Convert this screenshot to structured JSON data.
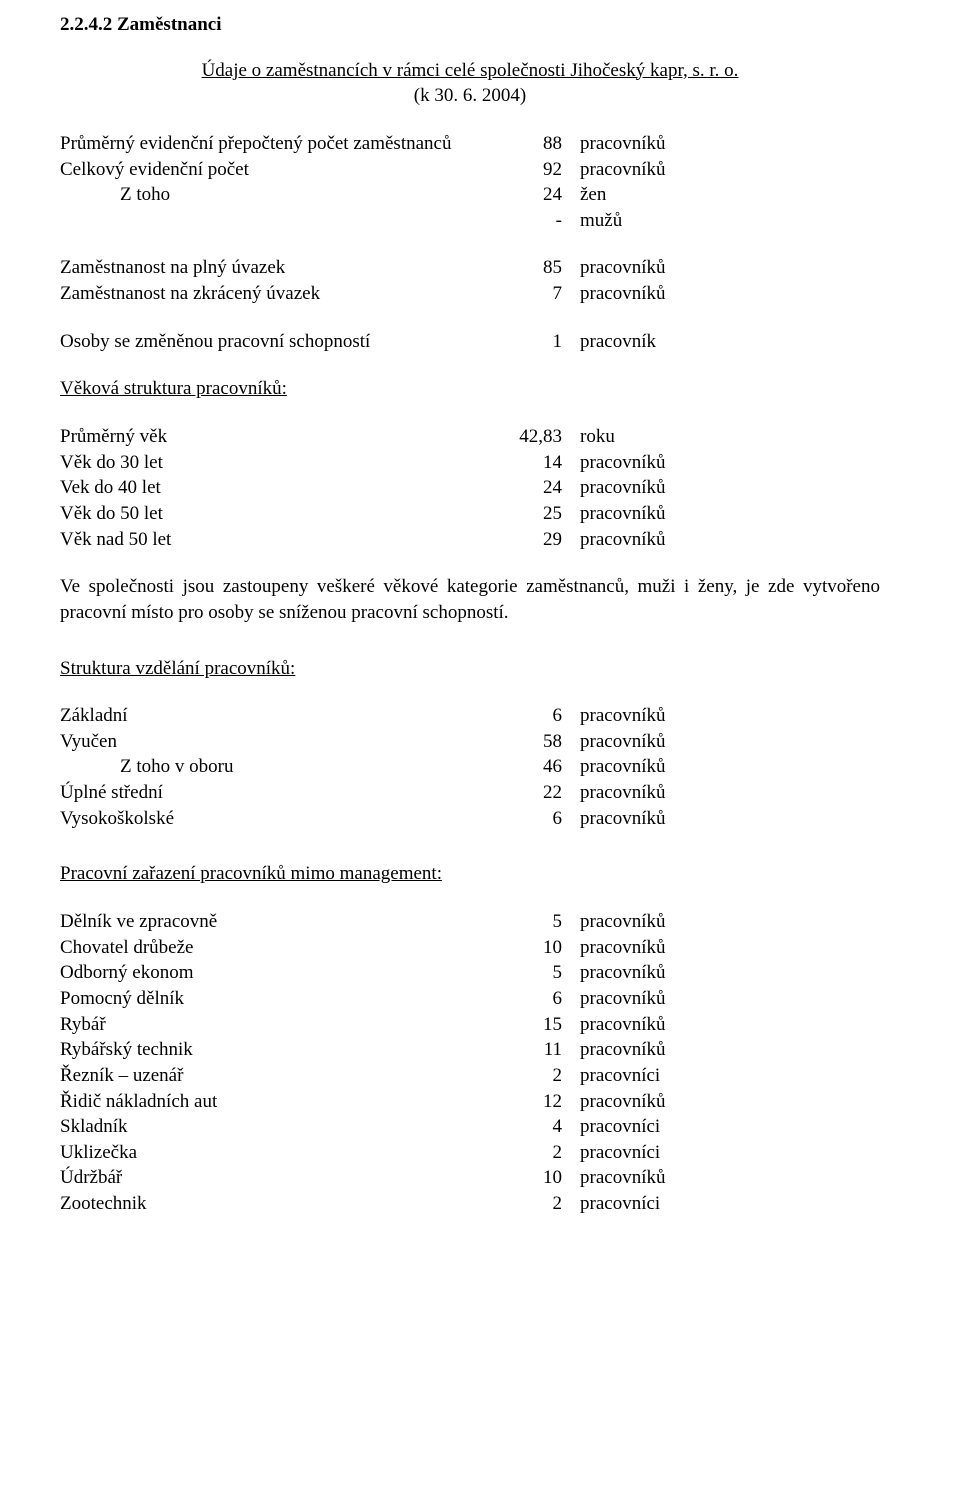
{
  "heading": "2.2.4.2 Zaměstnanci",
  "subtitle_line1": "Údaje o zaměstnancích v rámci celé společnosti Jihočeský kapr, s. r. o.",
  "subtitle_line2": "(k 30. 6. 2004)",
  "rows_general": [
    {
      "label": "Průměrný evidenční přepočtený počet zaměstnanců",
      "value": "88",
      "unit": "pracovníků",
      "indent": 0
    },
    {
      "label": "Celkový evidenční počet",
      "value": "92",
      "unit": "pracovníků",
      "indent": 0
    },
    {
      "label": "Z toho",
      "value": "24",
      "unit": "žen",
      "indent": 1
    },
    {
      "label": "",
      "value": "-",
      "unit": " mužů",
      "indent": 2
    }
  ],
  "rows_employment": [
    {
      "label": "Zaměstnanost na plný úvazek",
      "value": "85",
      "unit": "pracovníků",
      "indent": 0
    },
    {
      "label": "Zaměstnanost na zkrácený úvazek",
      "value": "7",
      "unit": "pracovníků",
      "indent": 0
    }
  ],
  "rows_disabled": [
    {
      "label": "Osoby se změněnou pracovní schopností",
      "value": "1",
      "unit": "pracovník",
      "indent": 0
    }
  ],
  "age_section_title": "Věková struktura pracovníků:",
  "rows_age": [
    {
      "label": "Průměrný věk",
      "value": "42,83",
      "unit": "roku",
      "indent": 0
    },
    {
      "label": "Věk do 30 let",
      "value": "14",
      "unit": "pracovníků",
      "indent": 0
    },
    {
      "label": "Vek do 40 let",
      "value": "24",
      "unit": "pracovníků",
      "indent": 0
    },
    {
      "label": "Věk do 50 let",
      "value": "25",
      "unit": "pracovníků",
      "indent": 0
    },
    {
      "label": "Věk nad 50 let",
      "value": "29",
      "unit": "pracovníků",
      "indent": 0
    }
  ],
  "paragraph": "Ve společnosti jsou zastoupeny veškeré věkové kategorie zaměstnanců, muži i ženy, je zde vytvořeno pracovní místo pro osoby se sníženou pracovní schopností.",
  "edu_section_title": "Struktura vzdělání pracovníků:",
  "rows_edu": [
    {
      "label": "Základní",
      "value": "6",
      "unit": "pracovníků",
      "indent": 0
    },
    {
      "label": "Vyučen",
      "value": "58",
      "unit": "pracovníků",
      "indent": 0
    },
    {
      "label": "Z toho v oboru",
      "value": "46",
      "unit": "pracovníků",
      "indent": 1
    },
    {
      "label": "Úplné střední",
      "value": "22",
      "unit": "pracovníků",
      "indent": 0
    },
    {
      "label": "Vysokoškolské",
      "value": "6",
      "unit": "pracovníků",
      "indent": 0
    }
  ],
  "job_section_title": "Pracovní zařazení pracovníků mimo management:",
  "rows_job": [
    {
      "label": "Dělník ve zpracovně",
      "value": "5",
      "unit": "pracovníků",
      "indent": 0
    },
    {
      "label": "Chovatel drůbeže",
      "value": "10",
      "unit": "pracovníků",
      "indent": 0
    },
    {
      "label": "Odborný ekonom",
      "value": "5",
      "unit": "pracovníků",
      "indent": 0
    },
    {
      "label": "Pomocný dělník",
      "value": "6",
      "unit": "pracovníků",
      "indent": 0
    },
    {
      "label": "Rybář",
      "value": "15",
      "unit": "pracovníků",
      "indent": 0
    },
    {
      "label": "Rybářský technik",
      "value": "11",
      "unit": "pracovníků",
      "indent": 0
    },
    {
      "label": "Řezník – uzenář",
      "value": "2",
      "unit": "pracovníci",
      "indent": 0
    },
    {
      "label": "Řidič nákladních aut",
      "value": "12",
      "unit": "pracovníků",
      "indent": 0
    },
    {
      "label": "Skladník",
      "value": "4",
      "unit": "pracovníci",
      "indent": 0
    },
    {
      "label": "Uklizečka",
      "value": "2",
      "unit": "pracovníci",
      "indent": 0
    },
    {
      "label": "Údržbář",
      "value": "10",
      "unit": "pracovníků",
      "indent": 0
    },
    {
      "label": "Zootechnik",
      "value": "2",
      "unit": "pracovníci",
      "indent": 0
    }
  ]
}
